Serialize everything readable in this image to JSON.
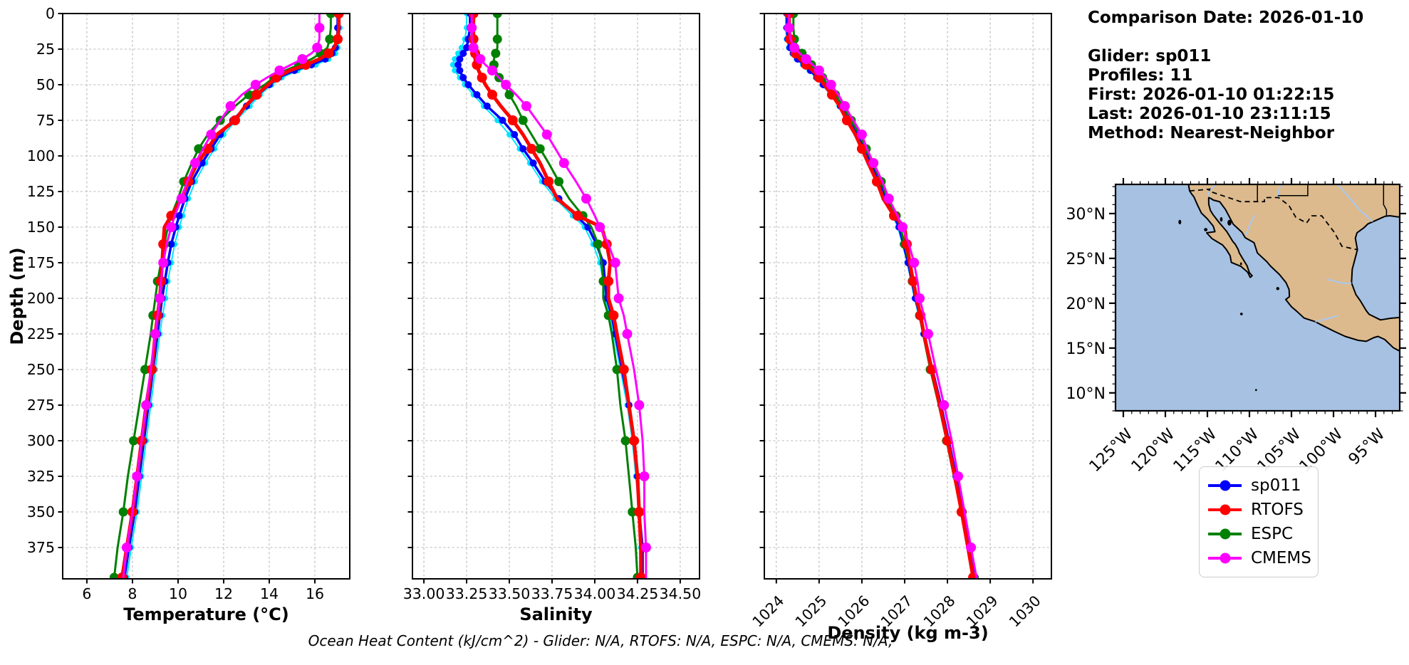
{
  "info_panel": {
    "comparison_date": "Comparison Date: 2026-01-10",
    "glider": "Glider: sp011",
    "profiles": "Profiles: 11",
    "first": "First: 2026-01-10 01:22:15",
    "last": "Last: 2026-01-10 23:11:15",
    "method": "Method: Nearest-Neighbor"
  },
  "footer": {
    "text": "Ocean Heat Content (kJ/cm^2) - Glider: N/A,  RTOFS: N/A,  ESPC: N/A,  CMEMS: N/A,"
  },
  "legend": {
    "items": [
      {
        "label": "sp011",
        "color": "#0000ff"
      },
      {
        "label": "RTOFS",
        "color": "#ff0000"
      },
      {
        "label": "ESPC",
        "color": "#008000"
      },
      {
        "label": "CMEMS",
        "color": "#ff00ff"
      }
    ]
  },
  "map": {
    "ocean_color": "#a7c1e2",
    "land_color": "#dcba8d",
    "coast_color": "#000000",
    "river_color": "#aac8f0",
    "extent": {
      "lon": [
        -125.93,
        -92.12
      ],
      "lat": [
        8.0,
        33.25
      ]
    },
    "lat_tick_values": [
      30,
      25,
      20,
      15,
      10
    ],
    "lat_tick_labels": [
      "30°N",
      "25°N",
      "20°N",
      "15°N",
      "10°N"
    ],
    "lon_tick_values": [
      -125,
      -120,
      -115,
      -110,
      -105,
      -100,
      -95
    ],
    "lon_tick_labels": [
      "125°W",
      "120°W",
      "115°W",
      "110°W",
      "105°W",
      "100°W",
      "95°W"
    ]
  },
  "chart_data": [
    {
      "type": "line",
      "xlabel": "Temperature (°C)",
      "ylabel": "Depth (m)",
      "xlim": [
        4.94,
        17.53
      ],
      "ylim": [
        0,
        397
      ],
      "x_ticks": [
        6,
        8,
        10,
        12,
        14,
        16
      ],
      "x_tick_labels": [
        "6",
        "8",
        "10",
        "12",
        "14",
        "16"
      ],
      "rotate_x_labels": false,
      "y_ticks": [
        0,
        25,
        50,
        75,
        100,
        125,
        150,
        175,
        200,
        225,
        250,
        275,
        300,
        325,
        350,
        375
      ],
      "show_y_tick_labels": true,
      "grid": true,
      "depths_m": [
        0,
        10,
        18,
        24,
        28,
        32,
        36,
        40,
        45,
        50,
        57,
        65,
        75,
        85,
        95,
        105,
        118,
        130,
        142,
        150,
        162,
        175,
        188,
        200,
        212,
        225,
        250,
        275,
        300,
        325,
        350,
        375,
        396
      ],
      "series": [
        {
          "name": "sp011-raw",
          "note": "unlabeled cyan dotted profile",
          "color": "#00e5ff",
          "values": [
            17.1,
            17.1,
            17.08,
            17.0,
            16.9,
            16.6,
            16.05,
            15.25,
            14.55,
            14.1,
            13.6,
            13.15,
            12.55,
            12.0,
            11.6,
            11.2,
            10.75,
            10.45,
            10.2,
            10.05,
            9.85,
            9.7,
            9.55,
            9.45,
            9.32,
            9.2,
            9.0,
            8.8,
            8.6,
            8.4,
            8.2,
            7.95,
            7.75
          ]
        },
        {
          "name": "sp011",
          "color": "#0000ff",
          "values": [
            17.0,
            17.0,
            16.98,
            16.9,
            16.75,
            16.45,
            15.85,
            15.1,
            14.4,
            14.0,
            13.5,
            13.0,
            12.4,
            11.85,
            11.45,
            11.05,
            10.6,
            10.3,
            10.05,
            9.9,
            9.7,
            9.55,
            9.42,
            9.3,
            9.2,
            9.1,
            8.9,
            8.7,
            8.5,
            8.3,
            8.1,
            7.85,
            7.65
          ]
        },
        {
          "name": "ESPC",
          "color": "#008000",
          "values": [
            16.7,
            16.7,
            16.65,
            16.55,
            16.25,
            15.85,
            15.3,
            14.7,
            14.2,
            13.8,
            13.1,
            12.5,
            11.85,
            11.3,
            10.9,
            10.6,
            10.25,
            10.0,
            9.7,
            9.55,
            9.4,
            9.25,
            9.1,
            9.0,
            8.9,
            8.8,
            8.55,
            8.3,
            8.05,
            7.8,
            7.6,
            7.35,
            7.2
          ]
        },
        {
          "name": "RTOFS",
          "color": "#ff0000",
          "values": [
            17.05,
            17.05,
            17.0,
            16.85,
            16.6,
            16.2,
            15.6,
            14.9,
            14.3,
            13.95,
            13.45,
            12.95,
            12.5,
            11.7,
            11.3,
            10.85,
            10.45,
            10.15,
            9.7,
            9.4,
            9.35,
            9.3,
            9.25,
            9.2,
            9.1,
            9.0,
            8.85,
            8.6,
            8.4,
            8.2,
            8.0,
            7.75,
            7.55
          ]
        },
        {
          "name": "CMEMS",
          "color": "#ff00ff",
          "values": [
            16.2,
            16.2,
            16.2,
            16.1,
            15.85,
            15.45,
            14.95,
            14.45,
            13.9,
            13.4,
            12.8,
            12.3,
            11.85,
            11.45,
            11.1,
            10.75,
            10.4,
            10.15,
            9.85,
            9.7,
            9.5,
            9.35,
            9.25,
            9.2,
            9.1,
            9.0,
            8.8,
            8.6,
            8.4,
            8.2,
            8.0,
            7.75,
            7.6
          ]
        }
      ]
    },
    {
      "type": "line",
      "xlabel": "Salinity",
      "ylabel": "",
      "xlim": [
        32.933,
        34.613
      ],
      "ylim": [
        0,
        397
      ],
      "x_ticks": [
        33.0,
        33.25,
        33.5,
        33.75,
        34.0,
        34.25,
        34.5
      ],
      "x_tick_labels": [
        "33.00",
        "33.25",
        "33.50",
        "33.75",
        "34.00",
        "34.25",
        "34.50"
      ],
      "rotate_x_labels": false,
      "y_ticks": [
        0,
        25,
        50,
        75,
        100,
        125,
        150,
        175,
        200,
        225,
        250,
        275,
        300,
        325,
        350,
        375
      ],
      "show_y_tick_labels": false,
      "grid": true,
      "depths_m": [
        0,
        10,
        18,
        24,
        28,
        32,
        36,
        40,
        45,
        50,
        57,
        65,
        75,
        85,
        95,
        105,
        118,
        130,
        142,
        150,
        162,
        175,
        188,
        200,
        212,
        225,
        250,
        275,
        300,
        325,
        350,
        375,
        396
      ],
      "series": [
        {
          "name": "sp011-raw",
          "note": "unlabeled cyan dotted profile",
          "color": "#00e5ff",
          "values": [
            33.25,
            33.25,
            33.24,
            33.22,
            33.2,
            33.18,
            33.17,
            33.18,
            33.21,
            33.24,
            33.29,
            33.35,
            33.43,
            33.5,
            33.56,
            33.62,
            33.69,
            33.77,
            33.87,
            33.94,
            33.99,
            34.03,
            34.05,
            34.06,
            34.09,
            34.11,
            34.15,
            34.19,
            34.22,
            34.24,
            34.26,
            34.27,
            34.28
          ]
        },
        {
          "name": "sp011",
          "color": "#0000ff",
          "values": [
            33.27,
            33.27,
            33.26,
            33.25,
            33.23,
            33.21,
            33.2,
            33.21,
            33.23,
            33.26,
            33.31,
            33.37,
            33.46,
            33.53,
            33.58,
            33.64,
            33.71,
            33.79,
            33.89,
            33.96,
            34.01,
            34.05,
            34.06,
            34.07,
            34.1,
            34.12,
            34.16,
            34.2,
            34.23,
            34.25,
            34.26,
            34.28,
            34.28
          ]
        },
        {
          "name": "ESPC",
          "color": "#008000",
          "values": [
            33.43,
            33.43,
            33.43,
            33.43,
            33.42,
            33.41,
            33.41,
            33.42,
            33.44,
            33.47,
            33.5,
            33.54,
            33.58,
            33.63,
            33.68,
            33.73,
            33.79,
            33.85,
            33.93,
            33.98,
            34.02,
            34.04,
            34.05,
            34.05,
            34.08,
            34.1,
            34.13,
            34.15,
            34.18,
            34.2,
            34.22,
            34.24,
            34.25
          ]
        },
        {
          "name": "RTOFS",
          "color": "#ff0000",
          "values": [
            33.29,
            33.29,
            33.29,
            33.3,
            33.3,
            33.3,
            33.31,
            33.32,
            33.34,
            33.36,
            33.4,
            33.45,
            33.52,
            33.58,
            33.63,
            33.68,
            33.73,
            33.78,
            33.9,
            34.04,
            34.07,
            34.09,
            34.08,
            34.08,
            34.11,
            34.13,
            34.17,
            34.2,
            34.23,
            34.25,
            34.26,
            34.27,
            34.27
          ]
        },
        {
          "name": "CMEMS",
          "color": "#ff00ff",
          "values": [
            33.28,
            33.28,
            33.28,
            33.29,
            33.31,
            33.33,
            33.36,
            33.4,
            33.44,
            33.48,
            33.54,
            33.6,
            33.66,
            33.72,
            33.77,
            33.82,
            33.89,
            33.95,
            34.0,
            34.03,
            34.08,
            34.12,
            34.13,
            34.14,
            34.17,
            34.19,
            34.23,
            34.26,
            34.28,
            34.29,
            34.29,
            34.3,
            34.3
          ]
        }
      ]
    },
    {
      "type": "line",
      "xlabel": "Density (kg m-3)",
      "ylabel": "",
      "xlim": [
        1023.72,
        1030.43
      ],
      "ylim": [
        0,
        397
      ],
      "x_ticks": [
        1024,
        1025,
        1026,
        1027,
        1028,
        1029,
        1030
      ],
      "x_tick_labels": [
        "1024",
        "1025",
        "1026",
        "1027",
        "1028",
        "1029",
        "1030"
      ],
      "rotate_x_labels": true,
      "y_ticks": [
        0,
        25,
        50,
        75,
        100,
        125,
        150,
        175,
        200,
        225,
        250,
        275,
        300,
        325,
        350,
        375
      ],
      "show_y_tick_labels": false,
      "grid": true,
      "depths_m": [
        0,
        10,
        18,
        24,
        28,
        32,
        36,
        40,
        45,
        50,
        57,
        65,
        75,
        85,
        95,
        105,
        118,
        130,
        142,
        150,
        162,
        175,
        188,
        200,
        212,
        225,
        250,
        275,
        300,
        325,
        350,
        375,
        396
      ],
      "series": [
        {
          "name": "sp011-raw",
          "note": "unlabeled cyan dotted profile",
          "color": "#00e5ff",
          "values": [
            1024.22,
            1024.22,
            1024.24,
            1024.29,
            1024.37,
            1024.47,
            1024.62,
            1024.77,
            1024.92,
            1025.07,
            1025.27,
            1025.47,
            1025.67,
            1025.87,
            1026.02,
            1026.17,
            1026.37,
            1026.52,
            1026.72,
            1026.84,
            1026.95,
            1027.06,
            1027.15,
            1027.23,
            1027.33,
            1027.43,
            1027.63,
            1027.83,
            1028.01,
            1028.18,
            1028.35,
            1028.5,
            1028.64
          ]
        },
        {
          "name": "sp011",
          "color": "#0000ff",
          "values": [
            1024.25,
            1024.25,
            1024.27,
            1024.32,
            1024.4,
            1024.5,
            1024.65,
            1024.8,
            1024.95,
            1025.1,
            1025.3,
            1025.5,
            1025.7,
            1025.9,
            1026.05,
            1026.2,
            1026.4,
            1026.55,
            1026.75,
            1026.87,
            1026.97,
            1027.08,
            1027.17,
            1027.25,
            1027.35,
            1027.45,
            1027.65,
            1027.85,
            1028.03,
            1028.2,
            1028.37,
            1028.52,
            1028.65
          ]
        },
        {
          "name": "ESPC",
          "color": "#008000",
          "values": [
            1024.4,
            1024.4,
            1024.42,
            1024.5,
            1024.6,
            1024.7,
            1024.82,
            1024.95,
            1025.08,
            1025.2,
            1025.38,
            1025.55,
            1025.75,
            1025.95,
            1026.1,
            1026.25,
            1026.45,
            1026.6,
            1026.8,
            1026.9,
            1027.0,
            1027.1,
            1027.18,
            1027.26,
            1027.35,
            1027.43,
            1027.6,
            1027.8,
            1027.98,
            1028.15,
            1028.33,
            1028.5,
            1028.62
          ]
        },
        {
          "name": "RTOFS",
          "color": "#ff0000",
          "values": [
            1024.3,
            1024.3,
            1024.32,
            1024.37,
            1024.45,
            1024.55,
            1024.7,
            1024.85,
            1025.0,
            1025.12,
            1025.3,
            1025.48,
            1025.65,
            1025.85,
            1026.0,
            1026.15,
            1026.35,
            1026.5,
            1026.75,
            1027.0,
            1027.05,
            1027.12,
            1027.2,
            1027.28,
            1027.37,
            1027.45,
            1027.63,
            1027.82,
            1028.0,
            1028.17,
            1028.33,
            1028.48,
            1028.6
          ]
        },
        {
          "name": "CMEMS",
          "color": "#ff00ff",
          "values": [
            1024.3,
            1024.3,
            1024.33,
            1024.42,
            1024.55,
            1024.7,
            1024.85,
            1025.0,
            1025.15,
            1025.28,
            1025.45,
            1025.6,
            1025.8,
            1026.0,
            1026.12,
            1026.27,
            1026.48,
            1026.63,
            1026.83,
            1026.95,
            1027.1,
            1027.22,
            1027.3,
            1027.35,
            1027.45,
            1027.55,
            1027.73,
            1027.92,
            1028.1,
            1028.25,
            1028.4,
            1028.55,
            1028.68
          ]
        }
      ]
    }
  ]
}
